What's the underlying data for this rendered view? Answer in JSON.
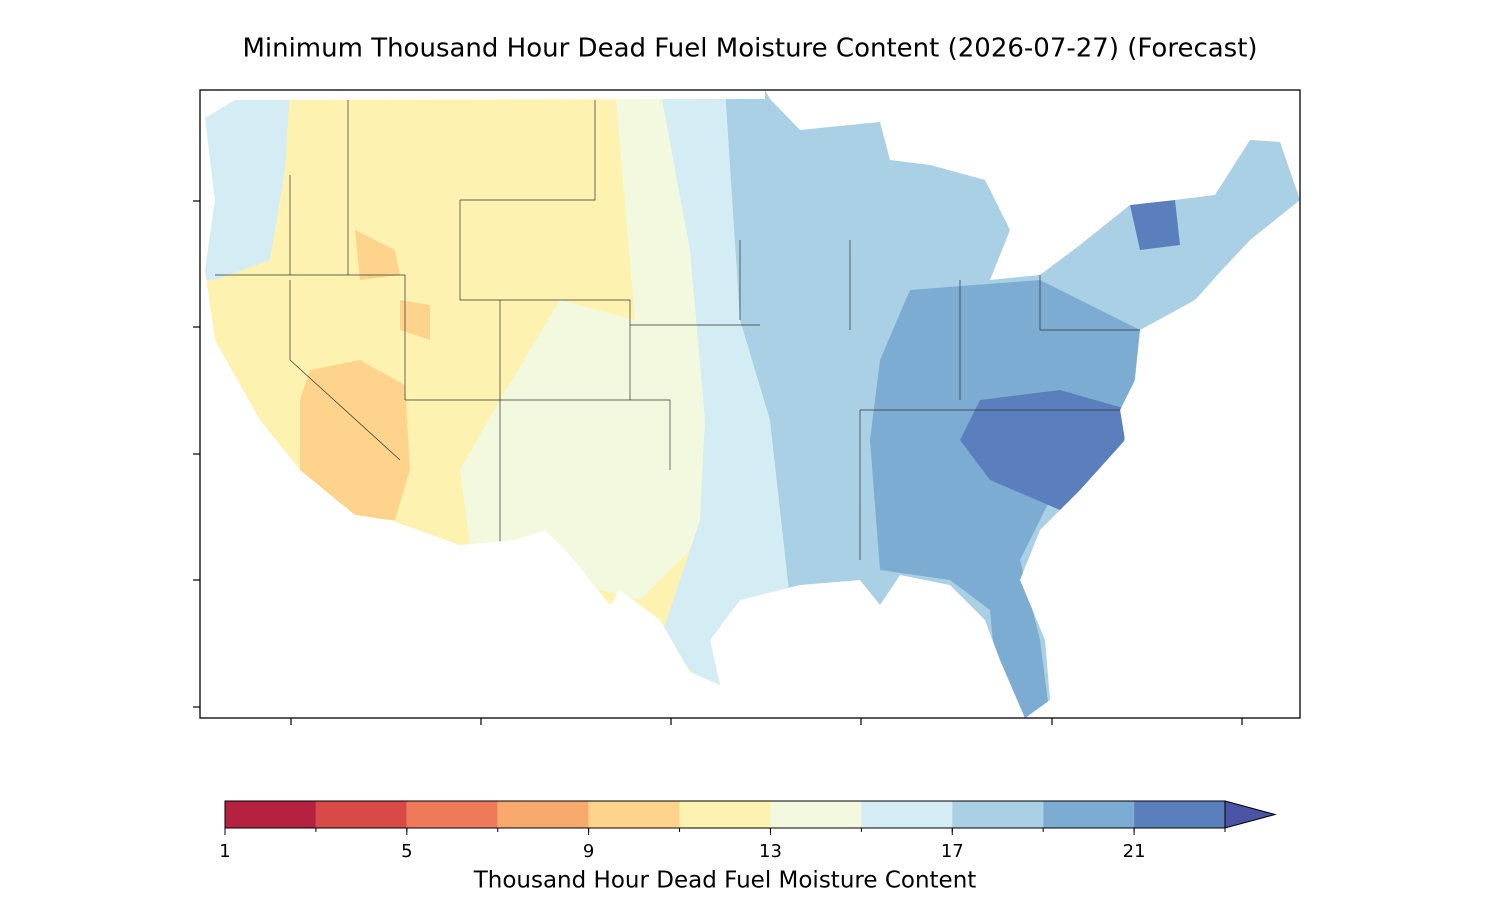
{
  "title": "Minimum Thousand Hour Dead Fuel Moisture Content (2026-07-27) (Forecast)",
  "colorbar": {
    "label": "Thousand Hour Dead Fuel Moisture Content",
    "levels": [
      1,
      3,
      5,
      7,
      9,
      11,
      13,
      15,
      17,
      19,
      21,
      23
    ],
    "colors": [
      "#b5213f",
      "#d84a47",
      "#ef7a5a",
      "#f8aa6c",
      "#fed48d",
      "#fef2b0",
      "#f2f9df",
      "#d4ecf4",
      "#a9d0e4",
      "#7dacd2",
      "#5b7fbd"
    ],
    "extend_color": "#4a54a4",
    "ticks": [
      1,
      5,
      9,
      13,
      17,
      21
    ]
  }
}
